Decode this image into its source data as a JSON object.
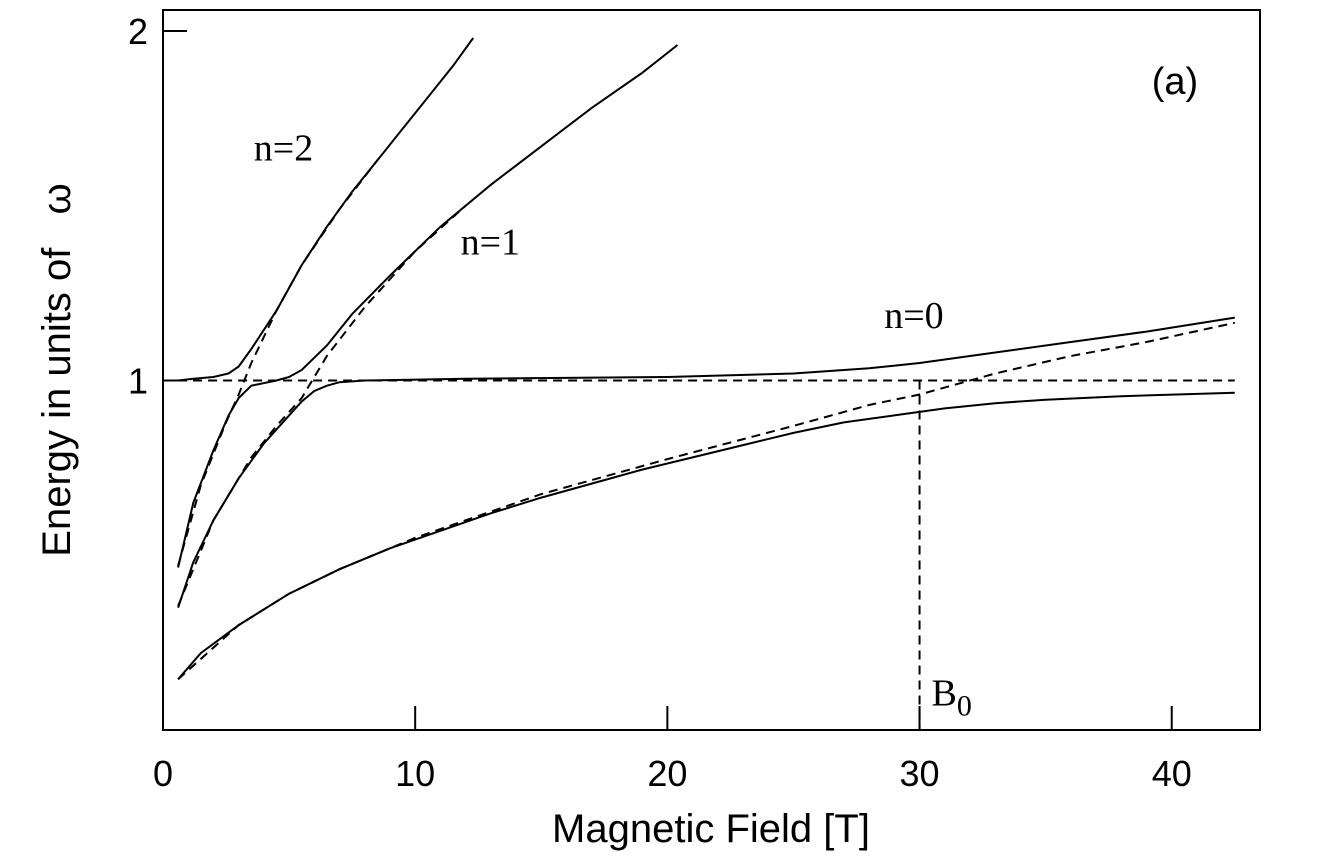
{
  "chart_data": {
    "type": "line",
    "xlabel": "Magnetic Field [T]",
    "ylabel": "Energy in units of",
    "ylabel_symbol": "ω",
    "panel_label": "(a)",
    "xlim": [
      0,
      43.5
    ],
    "ylim": [
      0.0,
      2.06
    ],
    "x_ticks": [
      0,
      10,
      20,
      30,
      40
    ],
    "x_tick_labels": [
      "0",
      "10",
      "20",
      "30",
      "40"
    ],
    "y_ticks": [
      1,
      2
    ],
    "y_tick_labels": [
      "1",
      "2"
    ],
    "grid": false,
    "legend": "none",
    "series": [
      {
        "style": "solid",
        "points": [
          [
            0.6,
            1.0
          ],
          [
            1.2,
            1.005
          ],
          [
            2.0,
            1.01
          ],
          [
            2.6,
            1.02
          ],
          [
            3.0,
            1.04
          ],
          [
            3.5,
            1.09
          ],
          [
            4.5,
            1.2
          ],
          [
            5.5,
            1.33
          ],
          [
            6.5,
            1.44
          ],
          [
            7.5,
            1.54
          ],
          [
            8.5,
            1.63
          ],
          [
            9.5,
            1.72
          ],
          [
            10.5,
            1.81
          ],
          [
            11.5,
            1.9
          ],
          [
            12.3,
            1.98
          ]
        ]
      },
      {
        "style": "solid",
        "points": [
          [
            0.6,
            0.465
          ],
          [
            1.2,
            0.65
          ],
          [
            2.0,
            0.8
          ],
          [
            2.6,
            0.9
          ],
          [
            3.0,
            0.95
          ],
          [
            3.5,
            0.985
          ],
          [
            4.5,
            1.0
          ],
          [
            5.0,
            1.01
          ],
          [
            5.5,
            1.03
          ],
          [
            6.5,
            1.1
          ],
          [
            7.5,
            1.19
          ],
          [
            9.0,
            1.3
          ],
          [
            11.0,
            1.44
          ],
          [
            13.0,
            1.56
          ],
          [
            15.0,
            1.67
          ],
          [
            17.0,
            1.78
          ],
          [
            19.0,
            1.88
          ],
          [
            20.4,
            1.96
          ]
        ]
      },
      {
        "style": "solid",
        "points": [
          [
            0.6,
            0.35
          ],
          [
            1.2,
            0.48
          ],
          [
            2.0,
            0.6
          ],
          [
            3.0,
            0.72
          ],
          [
            4.0,
            0.82
          ],
          [
            5.0,
            0.9
          ],
          [
            5.5,
            0.94
          ],
          [
            6.0,
            0.97
          ],
          [
            6.5,
            0.985
          ],
          [
            7.0,
            0.995
          ],
          [
            8.0,
            1.0
          ],
          [
            12.0,
            1.005
          ],
          [
            20.0,
            1.01
          ],
          [
            25.0,
            1.02
          ],
          [
            28.0,
            1.035
          ],
          [
            30.0,
            1.05
          ],
          [
            33.0,
            1.08
          ],
          [
            36.0,
            1.11
          ],
          [
            39.0,
            1.14
          ],
          [
            42.5,
            1.18
          ]
        ]
      },
      {
        "style": "solid",
        "points": [
          [
            0.6,
            0.145
          ],
          [
            1.5,
            0.22
          ],
          [
            3.0,
            0.3
          ],
          [
            5.0,
            0.39
          ],
          [
            7.0,
            0.46
          ],
          [
            9.0,
            0.52
          ],
          [
            11.0,
            0.57
          ],
          [
            13.0,
            0.62
          ],
          [
            15.0,
            0.665
          ],
          [
            17.0,
            0.705
          ],
          [
            19.0,
            0.745
          ],
          [
            21.0,
            0.78
          ],
          [
            23.0,
            0.815
          ],
          [
            25.0,
            0.85
          ],
          [
            27.0,
            0.88
          ],
          [
            29.0,
            0.9
          ],
          [
            31.0,
            0.92
          ],
          [
            33.0,
            0.935
          ],
          [
            35.0,
            0.945
          ],
          [
            38.0,
            0.955
          ],
          [
            42.5,
            0.965
          ]
        ]
      },
      {
        "style": "dashed",
        "points": [
          [
            0.6,
            1.0
          ],
          [
            42.5,
            1.0
          ]
        ]
      },
      {
        "style": "dashed",
        "points": [
          [
            0.6,
            0.47
          ],
          [
            1.5,
            0.7
          ],
          [
            2.5,
            0.88
          ],
          [
            3.0,
            0.96
          ],
          [
            3.5,
            1.05
          ],
          [
            4.5,
            1.2
          ],
          [
            5.5,
            1.33
          ],
          [
            7.0,
            1.49
          ],
          [
            8.5,
            1.63
          ]
        ]
      },
      {
        "style": "dashed",
        "points": [
          [
            0.6,
            0.355
          ],
          [
            2.0,
            0.6
          ],
          [
            3.5,
            0.78
          ],
          [
            4.5,
            0.87
          ],
          [
            5.5,
            0.95
          ],
          [
            6.5,
            1.07
          ],
          [
            8.0,
            1.21
          ],
          [
            10.0,
            1.37
          ],
          [
            12.0,
            1.5
          ]
        ]
      },
      {
        "style": "dashed",
        "points": [
          [
            0.6,
            0.145
          ],
          [
            3.0,
            0.3
          ],
          [
            5.0,
            0.39
          ],
          [
            7.0,
            0.46
          ],
          [
            10.0,
            0.55
          ],
          [
            15.0,
            0.675
          ],
          [
            20.0,
            0.775
          ],
          [
            25.0,
            0.87
          ],
          [
            28.0,
            0.93
          ],
          [
            30.0,
            0.96
          ],
          [
            33.0,
            1.02
          ],
          [
            36.0,
            1.07
          ],
          [
            39.0,
            1.11
          ],
          [
            42.5,
            1.165
          ]
        ]
      }
    ],
    "annotations": [
      {
        "text": "n=2",
        "x": 3.6,
        "y": 1.63
      },
      {
        "text": "n=1",
        "x": 11.8,
        "y": 1.36
      },
      {
        "text": "n=0",
        "x": 28.6,
        "y": 1.15
      }
    ],
    "vline": {
      "x": 30,
      "label": "B",
      "label_subscript": "0",
      "y_label": 0.07
    }
  }
}
